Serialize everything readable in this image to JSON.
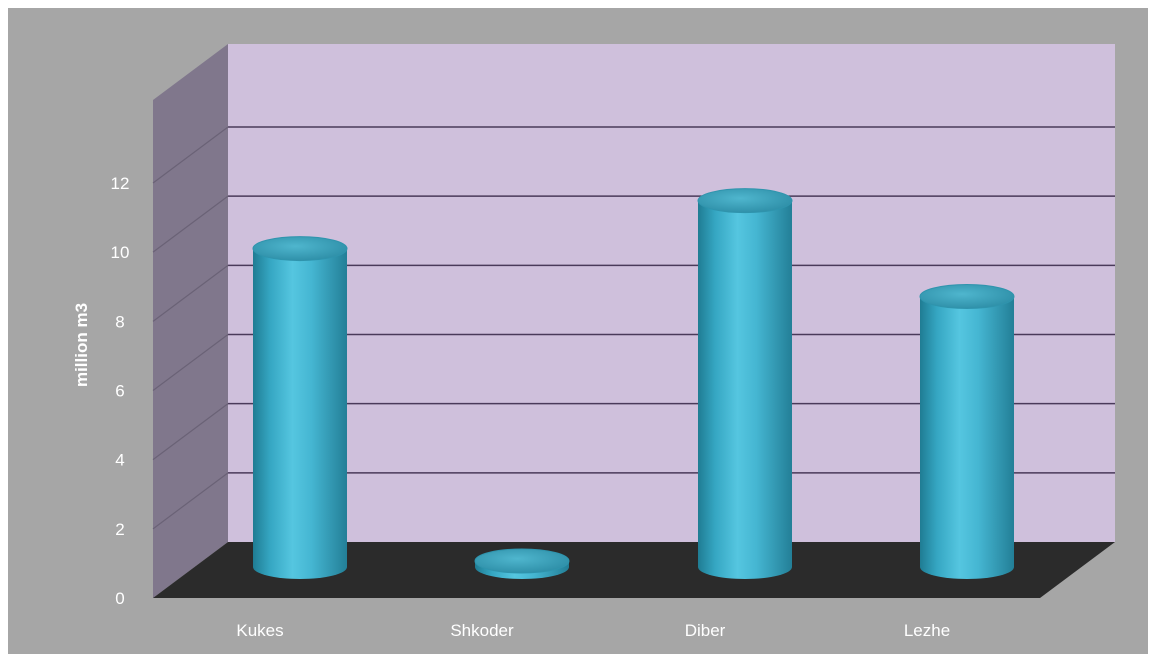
{
  "chart_data": {
    "type": "bar",
    "style": "3d-cylinder",
    "categories": [
      "Kukes",
      "Shkoder",
      "Diber",
      "Lezhe"
    ],
    "values": [
      9.3,
      0.15,
      10.7,
      7.9
    ],
    "title": "",
    "xlabel": "",
    "ylabel": "million m3",
    "ylim": [
      0,
      12
    ],
    "yticks": [
      "0",
      "2",
      "4",
      "6",
      "8",
      "10",
      "12"
    ],
    "grid": true,
    "legend": "none"
  },
  "colors": {
    "background": "#a6a6a6",
    "back_wall": "#cfc0dc",
    "side_wall": "#80778c",
    "floor": "#2b2b2b",
    "gridline": "#4a3a5a",
    "bar": "#40b2cc",
    "bar_top": "#3a9fb8",
    "text": "#ffffff"
  }
}
